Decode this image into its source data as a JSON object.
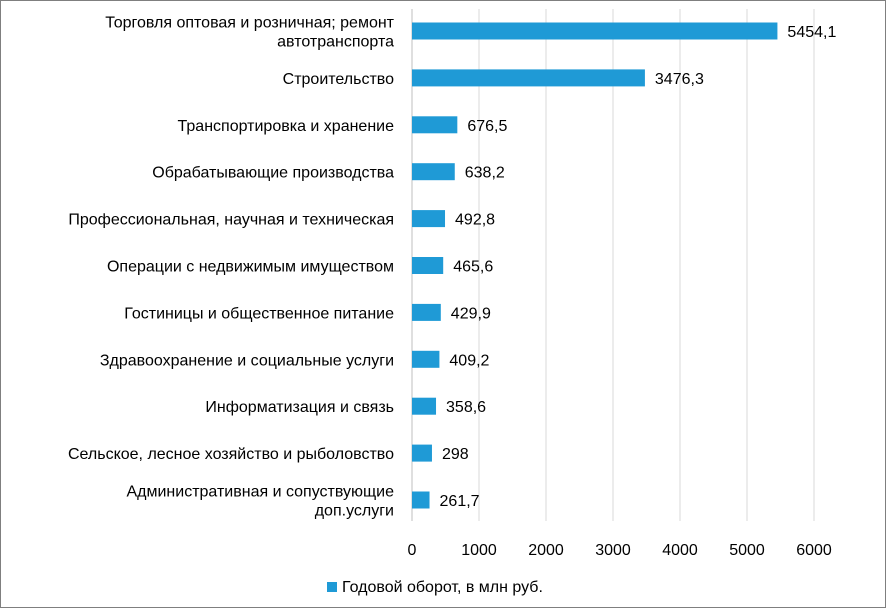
{
  "chart_data": {
    "type": "bar",
    "orientation": "horizontal",
    "title": "",
    "xlabel": "",
    "ylabel": "",
    "xlim": [
      0,
      6000
    ],
    "xticks": [
      0,
      1000,
      2000,
      3000,
      4000,
      5000,
      6000
    ],
    "grid": "vertical",
    "legend_position": "bottom",
    "color": "#1f9ad6",
    "categories": [
      "Торговля оптовая и розничная; ремонт автотранспорта",
      "Строительство",
      "Транспортировка и хранение",
      "Обрабатывающие производства",
      "Профессиональная, научная и техническая",
      "Операции с недвижимым имуществом",
      "Гостиницы и общественное питание",
      "Здравоохранение и социальные услуги",
      "Информатизация и связь",
      "Сельское, лесное хозяйство и рыболовство",
      "Административная и сопуствующие доп.услуги"
    ],
    "category_lines": [
      [
        "Торговля оптовая и розничная; ремонт",
        "автотранспорта"
      ],
      [
        "Строительство"
      ],
      [
        "Транспортировка и хранение"
      ],
      [
        "Обрабатывающие производства"
      ],
      [
        "Профессиональная, научная и техническая"
      ],
      [
        "Операции с недвижимым имуществом"
      ],
      [
        "Гостиницы и общественное питание"
      ],
      [
        "Здравоохранение и социальные услуги"
      ],
      [
        "Информатизация и связь"
      ],
      [
        "Сельское, лесное хозяйство и рыболовство"
      ],
      [
        "Административная и сопуствующие",
        "доп.услуги"
      ]
    ],
    "series": [
      {
        "name": "Годовой оборот, в млн руб.",
        "values": [
          5454.1,
          3476.3,
          676.5,
          638.2,
          492.8,
          465.6,
          429.9,
          409.2,
          358.6,
          298,
          261.7
        ],
        "labels": [
          "5454,1",
          "3476,3",
          "676,5",
          "638,2",
          "492,8",
          "465,6",
          "429,9",
          "409,2",
          "358,6",
          "298",
          "261,7"
        ]
      }
    ]
  }
}
